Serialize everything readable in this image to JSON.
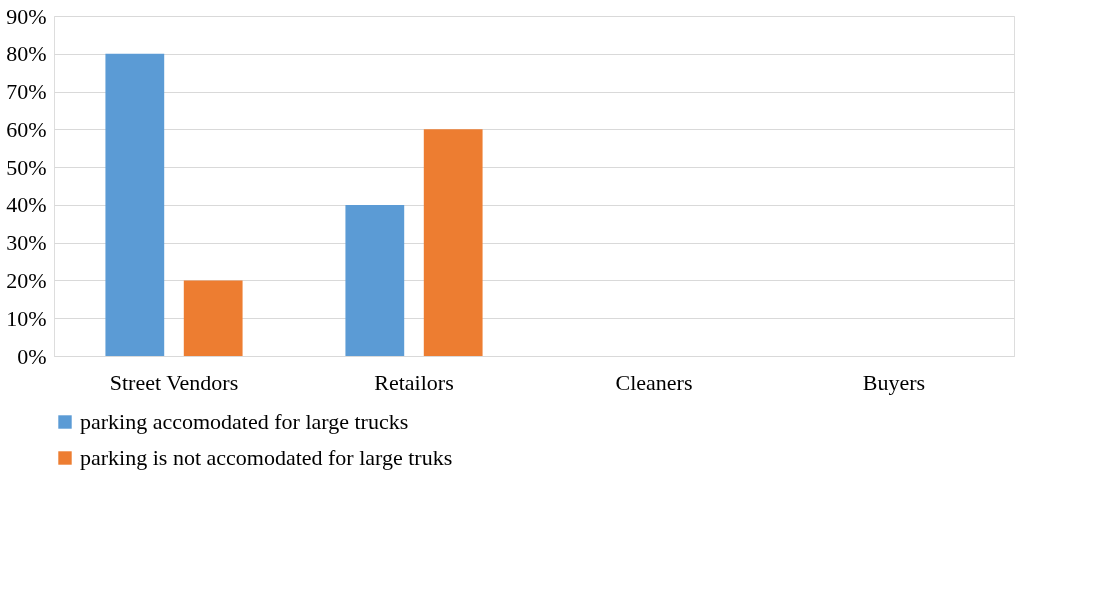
{
  "chart_data": {
    "type": "bar",
    "categories": [
      "Street Vendors",
      "Retailors",
      "Cleaners",
      "Buyers"
    ],
    "series": [
      {
        "name": "parking accomodated for large trucks",
        "color": "#5b9bd5",
        "values": [
          80,
          40,
          0,
          0
        ]
      },
      {
        "name": "parking is not accomodated for large truks",
        "color": "#ed7d31",
        "values": [
          20,
          60,
          0,
          0
        ]
      }
    ],
    "ylim": [
      0,
      90
    ],
    "yticks": [
      {
        "value": 0,
        "label": "0%"
      },
      {
        "value": 10,
        "label": "10%"
      },
      {
        "value": 20,
        "label": "20%"
      },
      {
        "value": 30,
        "label": "30%"
      },
      {
        "value": 40,
        "label": "40%"
      },
      {
        "value": 50,
        "label": "50%"
      },
      {
        "value": 60,
        "label": "60%"
      },
      {
        "value": 70,
        "label": "70%"
      },
      {
        "value": 80,
        "label": "80%"
      },
      {
        "value": 90,
        "label": "90%"
      }
    ],
    "grid": "y",
    "legend": "bottom"
  }
}
